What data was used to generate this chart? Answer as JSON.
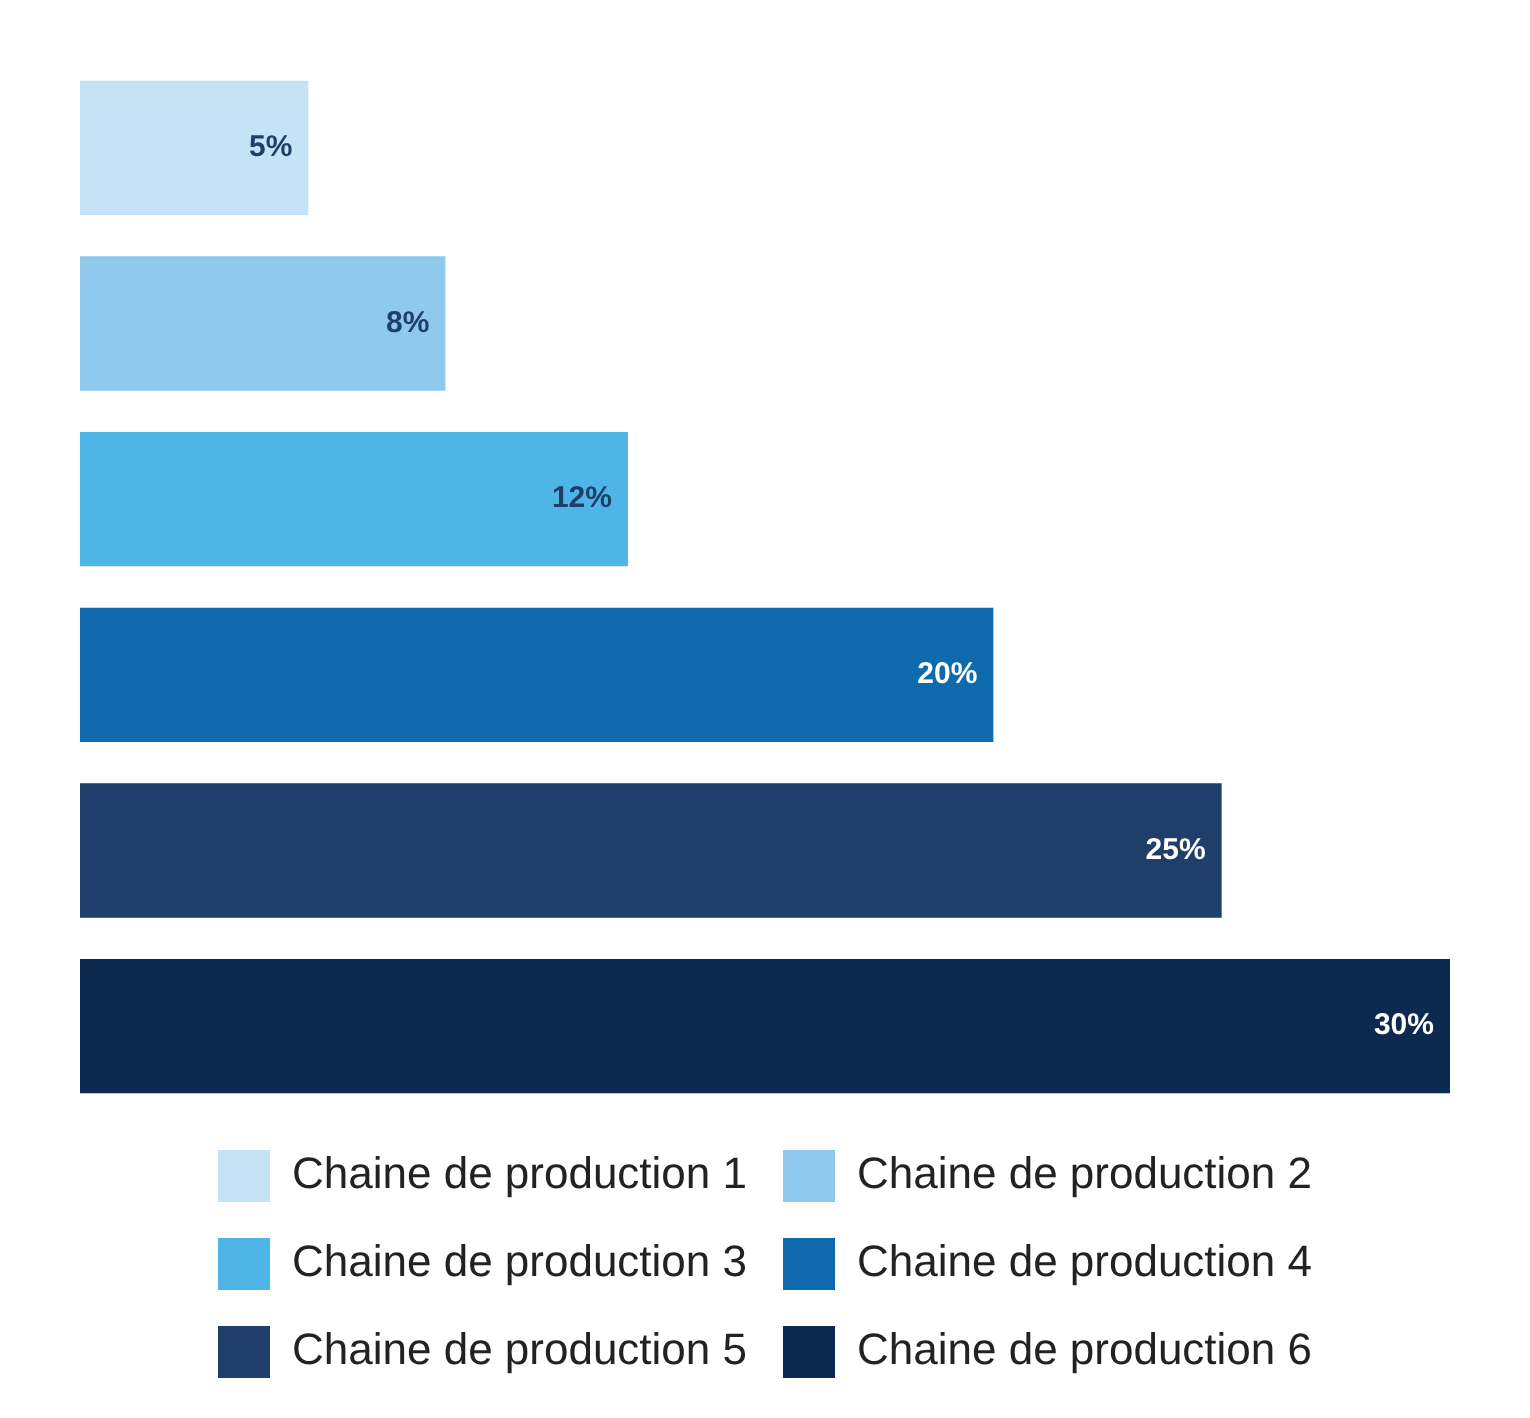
{
  "chart_data": {
    "type": "bar",
    "orientation": "horizontal",
    "categories": [
      null,
      null,
      null,
      null,
      null,
      null
    ],
    "series": [
      {
        "name": "Chaine de production 1",
        "color": "#c5e3f6",
        "values": [
          5,
          null,
          null,
          null,
          null,
          null
        ],
        "value_labels": [
          "5%",
          null,
          null,
          null,
          null,
          null
        ]
      },
      {
        "name": "Chaine de production 2",
        "color": "#8fc9ec",
        "values": [
          null,
          8,
          null,
          null,
          null,
          null
        ],
        "value_labels": [
          null,
          "8%",
          null,
          null,
          null,
          null
        ]
      },
      {
        "name": "Chaine de production 3",
        "color": "#4fb5e6",
        "values": [
          null,
          null,
          12,
          null,
          null,
          null
        ],
        "value_labels": [
          null,
          null,
          "12%",
          null,
          null,
          null
        ]
      },
      {
        "name": "Chaine de production 4",
        "color": "#0f6aad",
        "values": [
          null,
          null,
          null,
          20,
          null,
          null
        ],
        "value_labels": [
          null,
          null,
          null,
          "20%",
          null,
          null
        ]
      },
      {
        "name": "Chaine de production 5",
        "color": "#1f3f6a",
        "values": [
          null,
          null,
          null,
          null,
          25,
          null
        ],
        "value_labels": [
          null,
          null,
          null,
          null,
          "25%",
          null
        ]
      },
      {
        "name": "Chaine de production 6",
        "color": "#0c2a4f",
        "values": [
          null,
          null,
          null,
          null,
          null,
          30
        ],
        "value_labels": [
          null,
          null,
          null,
          null,
          null,
          "30%"
        ]
      }
    ],
    "stacked": true,
    "legend": "bottom",
    "tick_labels": false
  }
}
